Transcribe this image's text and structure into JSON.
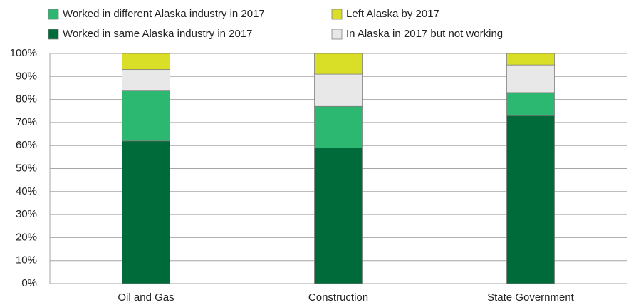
{
  "chart_data": {
    "type": "stacked_bar",
    "categories": [
      "Oil and Gas",
      "Construction",
      "State Government"
    ],
    "series": [
      {
        "name": "Worked in same Alaska industry in 2017",
        "color": "#006b3a",
        "values": [
          62,
          59,
          73
        ]
      },
      {
        "name": "Worked in different Alaska industry in 2017",
        "color": "#2db872",
        "values": [
          22,
          18,
          10
        ]
      },
      {
        "name": "In Alaska in 2017 but not working",
        "color": "#e8e8e8",
        "values": [
          9,
          14,
          12
        ]
      },
      {
        "name": "Left Alaska by 2017",
        "color": "#d9df26",
        "values": [
          7,
          9,
          5
        ]
      }
    ],
    "ylim": [
      0,
      100
    ],
    "yticks": [
      {
        "value": 0,
        "label": "0%"
      },
      {
        "value": 10,
        "label": "10%"
      },
      {
        "value": 20,
        "label": "20%"
      },
      {
        "value": 30,
        "label": "30%"
      },
      {
        "value": 40,
        "label": "40%"
      },
      {
        "value": 50,
        "label": "50%"
      },
      {
        "value": 60,
        "label": "60%"
      },
      {
        "value": 70,
        "label": "70%"
      },
      {
        "value": 80,
        "label": "80%"
      },
      {
        "value": 90,
        "label": "90%"
      },
      {
        "value": 100,
        "label": "100%"
      }
    ],
    "grid": true
  }
}
